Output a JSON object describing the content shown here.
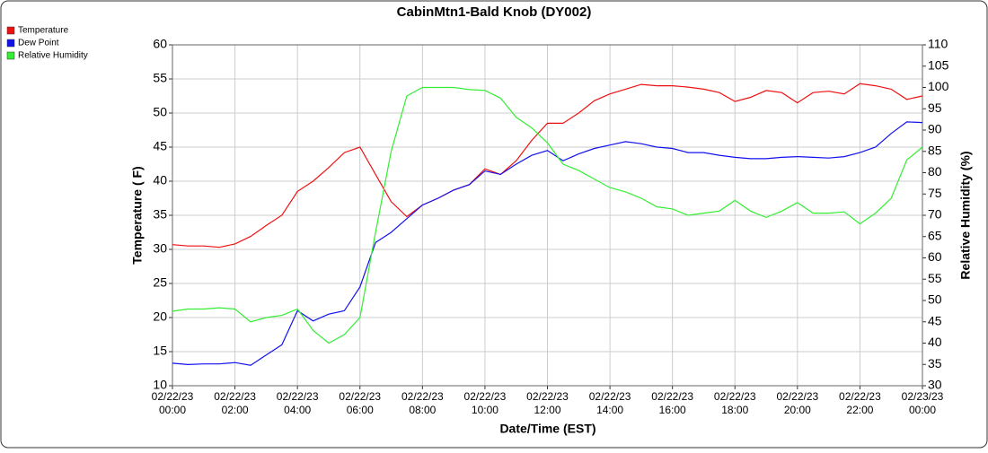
{
  "chart_data": {
    "type": "line",
    "title": "CabinMtn1-Bald Knob (DY002)",
    "xlabel": "Date/Time (EST)",
    "ylabel": "Temperature ( F)",
    "y2label": "Relative Humidity (%)",
    "legend": "top-left",
    "grid": true,
    "x": [
      "02/22/23 00:00",
      "02/22/23 00:30",
      "02/22/23 01:00",
      "02/22/23 01:30",
      "02/22/23 02:00",
      "02/22/23 02:30",
      "02/22/23 03:00",
      "02/22/23 03:30",
      "02/22/23 04:00",
      "02/22/23 04:30",
      "02/22/23 05:00",
      "02/22/23 05:30",
      "02/22/23 06:00",
      "02/22/23 06:30",
      "02/22/23 07:00",
      "02/22/23 07:30",
      "02/22/23 08:00",
      "02/22/23 08:30",
      "02/22/23 09:00",
      "02/22/23 09:30",
      "02/22/23 10:00",
      "02/22/23 10:30",
      "02/22/23 11:00",
      "02/22/23 11:30",
      "02/22/23 12:00",
      "02/22/23 12:30",
      "02/22/23 13:00",
      "02/22/23 13:30",
      "02/22/23 14:00",
      "02/22/23 14:30",
      "02/22/23 15:00",
      "02/22/23 15:30",
      "02/22/23 16:00",
      "02/22/23 16:30",
      "02/22/23 17:00",
      "02/22/23 17:30",
      "02/22/23 18:00",
      "02/22/23 18:30",
      "02/22/23 19:00",
      "02/22/23 19:30",
      "02/22/23 20:00",
      "02/22/23 20:30",
      "02/22/23 21:00",
      "02/22/23 21:30",
      "02/22/23 22:00",
      "02/22/23 22:30",
      "02/22/23 23:00",
      "02/22/23 23:30",
      "02/23/23 00:00"
    ],
    "xlim": [
      "02/22/23 00:00",
      "02/23/23 00:00"
    ],
    "xticks": [
      "02/22/23 00:00",
      "02/22/23 02:00",
      "02/22/23 04:00",
      "02/22/23 06:00",
      "02/22/23 08:00",
      "02/22/23 10:00",
      "02/22/23 12:00",
      "02/22/23 14:00",
      "02/22/23 16:00",
      "02/22/23 18:00",
      "02/22/23 20:00",
      "02/22/23 22:00",
      "02/23/23 00:00"
    ],
    "ylim": [
      10,
      60
    ],
    "yticks": [
      10,
      15,
      20,
      25,
      30,
      35,
      40,
      45,
      50,
      55,
      60
    ],
    "y2lim": [
      30,
      110
    ],
    "y2ticks": [
      30,
      35,
      40,
      45,
      50,
      55,
      60,
      65,
      70,
      75,
      80,
      85,
      90,
      95,
      100,
      105,
      110
    ],
    "series": [
      {
        "name": "Temperature",
        "color": "#ee1111",
        "values": [
          30.7,
          30.5,
          30.5,
          30.3,
          30.8,
          31.9,
          33.5,
          35,
          38.5,
          40,
          42,
          44.2,
          45,
          41,
          37,
          34.8,
          36.5,
          37.5,
          38.7,
          39.5,
          41.8,
          41,
          43,
          46,
          48.5,
          48.5,
          50,
          51.8,
          52.8,
          53.5,
          54.2,
          54,
          54,
          53.8,
          53.5,
          53,
          51.7,
          52.3,
          53.3,
          53,
          51.5,
          53,
          53.2,
          52.8,
          54.3,
          54,
          53.5,
          52,
          52.5
        ]
      },
      {
        "name": "Dew Point",
        "color": "#1111ee",
        "values": [
          13.3,
          13.1,
          13.2,
          13.2,
          13.4,
          13,
          14.5,
          16,
          21,
          19.5,
          20.5,
          21,
          24.5,
          31,
          32.5,
          34.5,
          36.5,
          37.5,
          38.7,
          39.5,
          41.5,
          41,
          42.5,
          43.8,
          44.5,
          43,
          44,
          44.8,
          45.3,
          45.8,
          45.5,
          45,
          44.8,
          44.2,
          44.2,
          43.8,
          43.5,
          43.3,
          43.3,
          43.5,
          43.6,
          43.5,
          43.4,
          43.6,
          44.2,
          45,
          47,
          48.7,
          48.6
        ]
      },
      {
        "name": "Relative Humidity",
        "color": "#33ee33",
        "axis": "y2",
        "values": [
          47.5,
          48,
          48,
          48.3,
          48,
          45,
          46,
          46.5,
          48,
          43,
          40,
          42,
          46,
          66,
          85,
          98,
          100,
          100,
          100,
          99.5,
          99.3,
          97.5,
          93,
          90.5,
          87,
          82,
          80.5,
          78.5,
          76.5,
          75.5,
          74,
          72,
          71.5,
          70,
          70.5,
          71,
          73.5,
          71,
          69.5,
          71,
          73,
          70.5,
          70.5,
          70.8,
          68,
          70.5,
          74,
          83,
          86
        ]
      }
    ]
  }
}
